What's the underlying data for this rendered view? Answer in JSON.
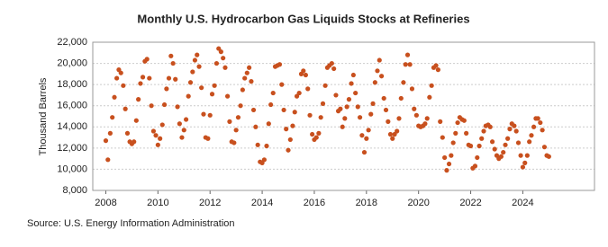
{
  "chart_data": {
    "type": "scatter",
    "title": "Monthly U.S. Hydrocarbon Gas Liquids Stocks at Refineries",
    "y_label": "Thousand Barrels",
    "source": "Source: U.S. Energy Information Administration",
    "color": "#c8501e",
    "grid": true,
    "xlim": [
      2007.5,
      2026.75
    ],
    "xticks": [
      2008,
      2010,
      2012,
      2014,
      2016,
      2018,
      2020,
      2022,
      2024
    ],
    "ylim": [
      8000,
      22000
    ],
    "yticks": [
      {
        "value": 8000,
        "label": "8,000"
      },
      {
        "value": 10000,
        "label": "10,000"
      },
      {
        "value": 12000,
        "label": "12,000"
      },
      {
        "value": 14000,
        "label": "14,000"
      },
      {
        "value": 16000,
        "label": "16,000"
      },
      {
        "value": 18000,
        "label": "18,000"
      },
      {
        "value": 20000,
        "label": "20,000"
      },
      {
        "value": 22000,
        "label": "22,000"
      }
    ],
    "x": [
      2008.0,
      2008.08,
      2008.17,
      2008.25,
      2008.33,
      2008.42,
      2008.5,
      2008.58,
      2008.67,
      2008.75,
      2008.83,
      2008.92,
      2009.0,
      2009.08,
      2009.17,
      2009.25,
      2009.33,
      2009.42,
      2009.5,
      2009.58,
      2009.67,
      2009.75,
      2009.83,
      2009.92,
      2010.0,
      2010.08,
      2010.17,
      2010.25,
      2010.33,
      2010.42,
      2010.5,
      2010.58,
      2010.67,
      2010.75,
      2010.83,
      2010.92,
      2011.0,
      2011.08,
      2011.17,
      2011.25,
      2011.33,
      2011.42,
      2011.5,
      2011.58,
      2011.67,
      2011.75,
      2011.83,
      2011.92,
      2012.0,
      2012.08,
      2012.17,
      2012.25,
      2012.33,
      2012.42,
      2012.5,
      2012.58,
      2012.67,
      2012.75,
      2012.83,
      2012.92,
      2013.0,
      2013.08,
      2013.17,
      2013.25,
      2013.33,
      2013.42,
      2013.5,
      2013.58,
      2013.67,
      2013.75,
      2013.83,
      2013.92,
      2014.0,
      2014.08,
      2014.17,
      2014.25,
      2014.33,
      2014.42,
      2014.5,
      2014.58,
      2014.67,
      2014.75,
      2014.83,
      2014.92,
      2015.0,
      2015.08,
      2015.17,
      2015.25,
      2015.33,
      2015.42,
      2015.5,
      2015.58,
      2015.67,
      2015.75,
      2015.83,
      2015.92,
      2016.0,
      2016.08,
      2016.17,
      2016.25,
      2016.33,
      2016.42,
      2016.5,
      2016.58,
      2016.67,
      2016.75,
      2016.83,
      2016.92,
      2017.0,
      2017.08,
      2017.17,
      2017.25,
      2017.33,
      2017.42,
      2017.5,
      2017.58,
      2017.67,
      2017.75,
      2017.83,
      2017.92,
      2018.0,
      2018.08,
      2018.17,
      2018.25,
      2018.33,
      2018.42,
      2018.5,
      2018.58,
      2018.67,
      2018.75,
      2018.83,
      2018.92,
      2019.0,
      2019.08,
      2019.17,
      2019.25,
      2019.33,
      2019.42,
      2019.5,
      2019.58,
      2019.67,
      2019.75,
      2019.83,
      2019.92,
      2020.0,
      2020.08,
      2020.17,
      2020.25,
      2020.33,
      2020.42,
      2020.5,
      2020.58,
      2020.67,
      2020.75,
      2020.83,
      2020.92,
      2021.0,
      2021.08,
      2021.17,
      2021.25,
      2021.33,
      2021.42,
      2021.5,
      2021.58,
      2021.67,
      2021.75,
      2021.83,
      2021.92,
      2022.0,
      2022.08,
      2022.17,
      2022.25,
      2022.33,
      2022.42,
      2022.5,
      2022.58,
      2022.67,
      2022.75,
      2022.83,
      2022.92,
      2023.0,
      2023.08,
      2023.17,
      2023.25,
      2023.33,
      2023.42,
      2023.5,
      2023.58,
      2023.67,
      2023.75,
      2023.83,
      2023.92,
      2024.0,
      2024.08,
      2024.17,
      2024.25,
      2024.33,
      2024.42,
      2024.5,
      2024.58,
      2024.67,
      2024.75,
      2024.83,
      2024.92,
      2025.0
    ],
    "values": [
      12700,
      10900,
      13400,
      14900,
      16800,
      18600,
      19400,
      19100,
      17900,
      15700,
      13400,
      12600,
      12400,
      12600,
      14600,
      16600,
      18100,
      18700,
      20200,
      20400,
      18600,
      16000,
      13600,
      13200,
      12300,
      12900,
      14200,
      16100,
      17600,
      18600,
      20700,
      20000,
      18500,
      15900,
      14300,
      13000,
      13700,
      14700,
      16900,
      18200,
      19200,
      20300,
      20800,
      19700,
      17700,
      15200,
      13000,
      12900,
      15100,
      17100,
      17900,
      20000,
      21400,
      21100,
      20500,
      19600,
      16900,
      14500,
      12600,
      12500,
      13700,
      14900,
      16000,
      17500,
      18600,
      19100,
      19600,
      18300,
      15600,
      14000,
      12300,
      10700,
      10600,
      10900,
      12200,
      14300,
      16100,
      17200,
      19700,
      19800,
      19900,
      18000,
      15600,
      13800,
      11800,
      12800,
      14100,
      15400,
      16900,
      17200,
      19000,
      19300,
      18900,
      17600,
      15100,
      13300,
      12800,
      13000,
      13400,
      14900,
      16200,
      17900,
      19600,
      19800,
      20000,
      19500,
      17000,
      15500,
      15700,
      14000,
      14800,
      15900,
      16600,
      18100,
      18900,
      17200,
      15900,
      14900,
      13200,
      11600,
      12900,
      13700,
      15200,
      16200,
      18200,
      19300,
      20300,
      18800,
      16700,
      15600,
      14500,
      13300,
      12900,
      13300,
      13600,
      14800,
      16700,
      18200,
      19900,
      20800,
      19900,
      17600,
      15700,
      15100,
      14100,
      14000,
      14100,
      14300,
      14800,
      16800,
      17900,
      19600,
      19800,
      19400,
      14500,
      13000,
      11100,
      9900,
      10500,
      11300,
      12500,
      13400,
      14400,
      14900,
      14700,
      14600,
      13400,
      12300,
      12200,
      10100,
      10300,
      11100,
      12200,
      12900,
      13600,
      14100,
      14200,
      14000,
      12600,
      11900,
      11300,
      11000,
      11200,
      11600,
      12300,
      12900,
      13800,
      14300,
      14100,
      13600,
      12500,
      11300,
      10200,
      10600,
      11300,
      12600,
      13200,
      14000,
      14800,
      14800,
      14400,
      13700,
      12100,
      11300,
      11200
    ]
  }
}
